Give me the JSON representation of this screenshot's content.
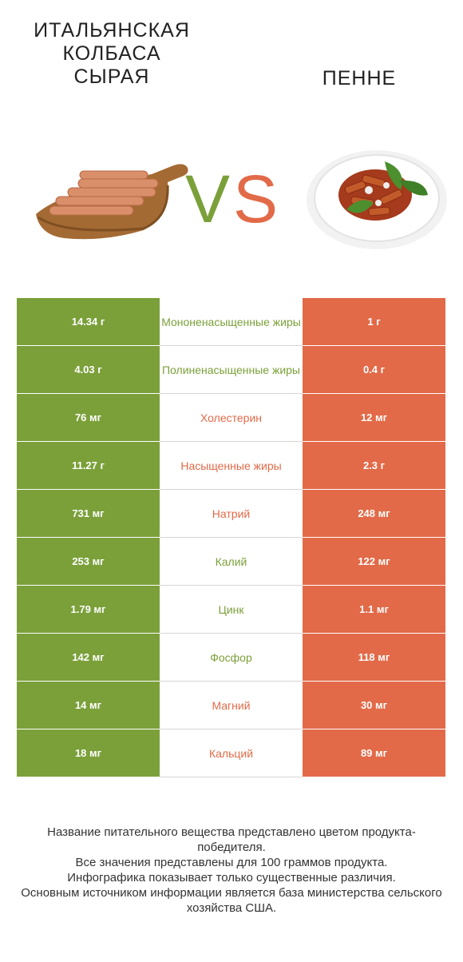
{
  "header": {
    "left_title": "Итальянская\nколбаса\nсырая",
    "right_title": "Пенне",
    "vs_left": "V",
    "vs_right": "S"
  },
  "colors": {
    "left_winner": "#7ba03a",
    "right_winner": "#e26a48"
  },
  "rows": [
    {
      "left": "14.34 г",
      "nutrient": "Мононенасыщенные жиры",
      "right": "1 г",
      "winner": "left"
    },
    {
      "left": "4.03 г",
      "nutrient": "Полиненасыщенные жиры",
      "right": "0.4 г",
      "winner": "left"
    },
    {
      "left": "76 мг",
      "nutrient": "Холестерин",
      "right": "12 мг",
      "winner": "right"
    },
    {
      "left": "11.27 г",
      "nutrient": "Насыщенные жиры",
      "right": "2.3 г",
      "winner": "right"
    },
    {
      "left": "731 мг",
      "nutrient": "Натрий",
      "right": "248 мг",
      "winner": "right"
    },
    {
      "left": "253 мг",
      "nutrient": "Калий",
      "right": "122 мг",
      "winner": "left"
    },
    {
      "left": "1.79 мг",
      "nutrient": "Цинк",
      "right": "1.1 мг",
      "winner": "left"
    },
    {
      "left": "142 мг",
      "nutrient": "Фосфор",
      "right": "118 мг",
      "winner": "left"
    },
    {
      "left": "14 мг",
      "nutrient": "Магний",
      "right": "30 мг",
      "winner": "right"
    },
    {
      "left": "18 мг",
      "nutrient": "Кальций",
      "right": "89 мг",
      "winner": "right"
    }
  ],
  "footnote": [
    "Название питательного вещества представлено цветом продукта-победителя.",
    "Все значения представлены для 100 граммов продукта.",
    "Инфографика показывает только существенные различия.",
    "Основным источником информации является база министерства сельского хозяйства США."
  ]
}
